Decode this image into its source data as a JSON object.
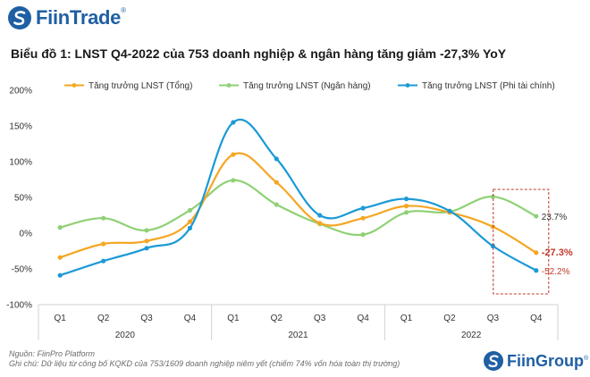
{
  "brand": {
    "name": "FiinTrade",
    "mark": "®",
    "footer_brand": "FiinGroup",
    "footer_mark": "®"
  },
  "title": "Biểu đồ 1: LNST Q4-2022 của 753 doanh nghiệp & ngân hàng tăng giảm -27,3% YoY",
  "footer": {
    "source": "Nguồn: FiinPro Platform",
    "note": "Ghi chú: Dữ liệu từ công bố KQKD của 753/1609 doanh nghiệp niêm yết (chiếm 74% vốn hóa toàn thị trường)"
  },
  "colors": {
    "tong": "#f5a623",
    "nganhang": "#8fd175",
    "phitaichinh": "#1b9ad6",
    "brand": "#1f5fa4",
    "highlight": "#c0392b"
  },
  "chart_data": {
    "type": "line",
    "categories": [
      "Q1",
      "Q2",
      "Q3",
      "Q4",
      "Q1",
      "Q2",
      "Q3",
      "Q4",
      "Q1",
      "Q2",
      "Q3",
      "Q4"
    ],
    "groups": [
      {
        "label": "2020",
        "start": 0,
        "end": 3
      },
      {
        "label": "2021",
        "start": 4,
        "end": 7
      },
      {
        "label": "2022",
        "start": 8,
        "end": 11
      }
    ],
    "ylim": [
      -100,
      200
    ],
    "yticks": [
      200,
      150,
      100,
      50,
      0,
      -50,
      -100
    ],
    "ytick_labels": [
      "200%",
      "150%",
      "100%",
      "50%",
      "0%",
      "-50%",
      "-100%"
    ],
    "legend_position": "top",
    "grid": false,
    "series": [
      {
        "name": "Tăng trưởng LNST (Tổng)",
        "color": "#f5a623",
        "values": [
          -34,
          -15,
          -11,
          16,
          110,
          71,
          14,
          21,
          38,
          29,
          9,
          -27.3
        ]
      },
      {
        "name": "Tăng trưởng LNST (Ngân hàng)",
        "color": "#8fd175",
        "values": [
          8,
          21,
          4,
          32,
          74,
          40,
          13,
          -2,
          29,
          30,
          51,
          23.7
        ]
      },
      {
        "name": "Tăng trưởng LNST (Phi tài chính)",
        "color": "#1b9ad6",
        "values": [
          -59,
          -39,
          -21,
          7,
          155,
          104,
          25,
          35,
          48,
          31,
          -18,
          -52.2
        ]
      }
    ],
    "annotations": [
      {
        "text": "23.7%",
        "series": 1,
        "color": "#333333",
        "bold": false
      },
      {
        "text": "-27.3%",
        "series": 0,
        "color": "#c0392b",
        "bold": true
      },
      {
        "text": "-52.2%",
        "series": 2,
        "color": "#c0392b",
        "bold": false
      }
    ]
  }
}
